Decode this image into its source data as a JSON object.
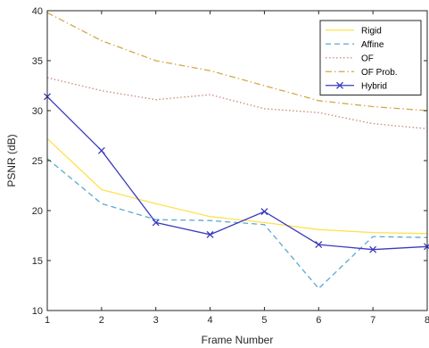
{
  "chart_data": {
    "type": "line",
    "xlabel": "Frame Number",
    "ylabel": "PSNR (dB)",
    "xlim": [
      1,
      8
    ],
    "ylim": [
      10,
      40
    ],
    "xticks": [
      1,
      2,
      3,
      4,
      5,
      6,
      7,
      8
    ],
    "yticks": [
      10,
      15,
      20,
      25,
      30,
      35,
      40
    ],
    "x": [
      1,
      2,
      3,
      4,
      5,
      6,
      7,
      8
    ],
    "grid": false,
    "legend_position": "top-right",
    "series": [
      {
        "name": "Rigid",
        "color": "#ffe14d",
        "style": "solid",
        "marker": "none",
        "values": [
          27.2,
          22.1,
          20.7,
          19.4,
          18.8,
          18.1,
          17.8,
          17.7
        ]
      },
      {
        "name": "Affine",
        "color": "#5ba8d4",
        "style": "dashed",
        "marker": "none",
        "values": [
          25.2,
          20.7,
          19.1,
          19.0,
          18.6,
          12.2,
          17.4,
          17.3
        ]
      },
      {
        "name": "OF",
        "color": "#c8877a",
        "style": "dotted",
        "marker": "none",
        "values": [
          33.3,
          32.0,
          31.1,
          31.6,
          30.2,
          29.8,
          28.7,
          28.2
        ]
      },
      {
        "name": "OF Prob.",
        "color": "#d4a84a",
        "style": "dashdot",
        "marker": "none",
        "values": [
          39.8,
          37.0,
          35.0,
          34.0,
          32.5,
          31.0,
          30.4,
          30.0
        ]
      },
      {
        "name": "Hybrid",
        "color": "#3b3bbd",
        "style": "solid",
        "marker": "x",
        "values": [
          31.4,
          26.0,
          18.8,
          17.6,
          19.9,
          16.6,
          16.1,
          16.4
        ]
      }
    ]
  }
}
